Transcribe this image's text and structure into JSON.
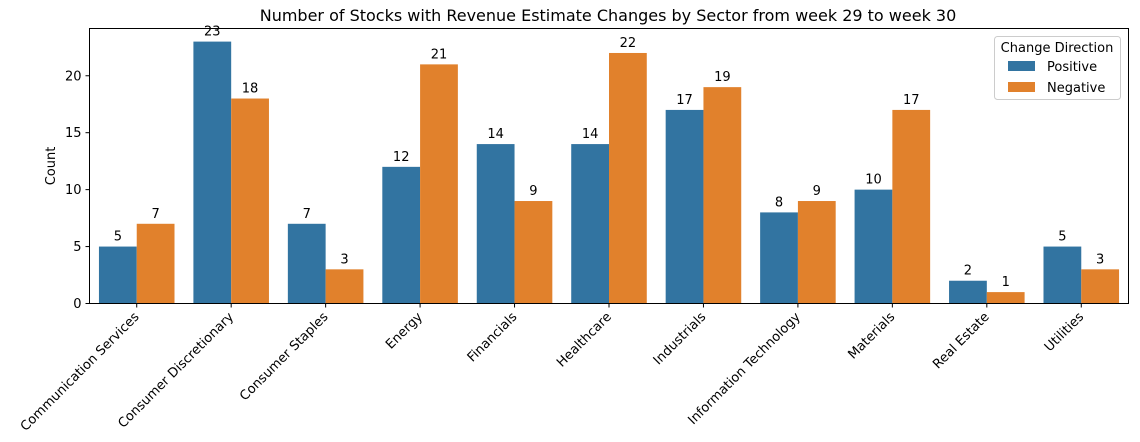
{
  "chart_data": {
    "type": "bar",
    "title": "Number of Stocks with Revenue Estimate Changes by Sector from week 29 to week 30",
    "xlabel": "",
    "ylabel": "Count",
    "ylim": [
      0,
      24.15
    ],
    "yticks": [
      0,
      5,
      10,
      15,
      20
    ],
    "grid": false,
    "legend": {
      "title": "Change Direction",
      "placement": "top-right"
    },
    "categories": [
      "Communication Services",
      "Consumer Discretionary",
      "Consumer Staples",
      "Energy",
      "Financials",
      "Healthcare",
      "Industrials",
      "Information Technology",
      "Materials",
      "Real Estate",
      "Utilities"
    ],
    "series": [
      {
        "name": "Positive",
        "color": "#3274a1",
        "values": [
          5,
          23,
          7,
          12,
          14,
          14,
          17,
          8,
          10,
          2,
          5
        ]
      },
      {
        "name": "Negative",
        "color": "#e1812c",
        "values": [
          7,
          18,
          3,
          21,
          9,
          22,
          19,
          9,
          17,
          1,
          3
        ]
      }
    ]
  }
}
